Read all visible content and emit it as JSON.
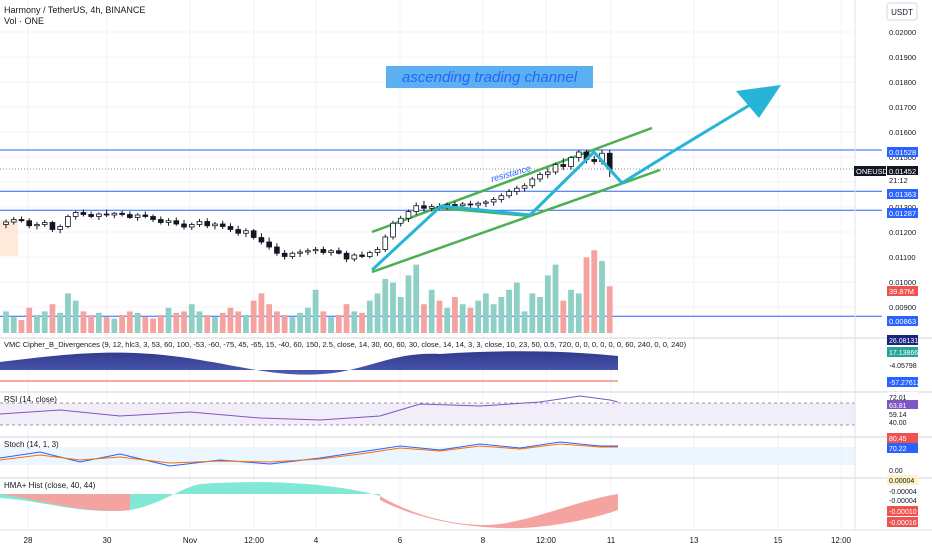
{
  "header": {
    "title": "Harmony / TetherUS, 4h, BINANCE",
    "subtitle": "Vol · ONE",
    "currency_button": "USDT"
  },
  "annotations": {
    "channel_label": "ascending trading channel",
    "resistance_label": "resistance"
  },
  "indicators": {
    "vmc": {
      "label": "VMC Cipher_B_Divergences (9, 12, hlc3, 3, 53, 60, 100, -53, -60, -75, 45, -65, 15, -40, 60, 150, 2.5, close, 14, 30, 60, 60, 30, close, 14, 14, 3, 3, close, 10, 23, 50, 0.5, 720, 0, 0, 0, 0, 0, 0, 60, 240, 0, 0, 240)",
      "values": [
        "26.08131",
        "17.13866",
        "-4.05798",
        "-57.27612"
      ]
    },
    "rsi": {
      "label": "RSI (14, close)",
      "values": [
        "72.01",
        "63.81",
        "59.14",
        "40.00"
      ]
    },
    "stoch": {
      "label": "Stoch (14, 1, 3)",
      "values": [
        "80.45",
        "70.22",
        "0.00"
      ]
    },
    "hma": {
      "label": "HMA+ Hist (close, 40, 44)",
      "values": [
        "0.00004",
        "-0.00004",
        "-0.00004",
        "-0.00010",
        "-0.00016"
      ]
    }
  },
  "price_axis": {
    "ticks": [
      "0.02000",
      "0.01900",
      "0.01800",
      "0.01700",
      "0.01600",
      "0.01500",
      "0.01400",
      "0.01300",
      "0.01200",
      "0.01100",
      "0.01000",
      "0.00900"
    ],
    "tags": [
      {
        "text": "0.01528",
        "color": "#2962ff"
      },
      {
        "text": "ONEUSDT",
        "color": "#131722"
      },
      {
        "text": "0.01452",
        "color": "#131722"
      },
      {
        "text": "21:12",
        "color": "#131722"
      },
      {
        "text": "0.01363",
        "color": "#2962ff"
      },
      {
        "text": "0.01287",
        "color": "#2962ff"
      },
      {
        "text": "39.87M",
        "color": "#ef5350"
      },
      {
        "text": "0.00863",
        "color": "#2962ff"
      }
    ]
  },
  "time_axis": [
    "28",
    "30",
    "Nov",
    "12:00",
    "4",
    "6",
    "8",
    "12:00",
    "11",
    "13",
    "15",
    "12:00"
  ],
  "colors": {
    "up": "#26a69a",
    "down": "#ef5350",
    "channel": "#4caf50",
    "hline": "#2962ff",
    "arrow": "#26b5d6",
    "label_bg": "#5ab0f0",
    "label_text": "#2962ff"
  },
  "chart_data": {
    "type": "candlestick",
    "title": "Harmony / TetherUS, 4h, BINANCE",
    "xlabel": "",
    "ylabel": "",
    "ylim": [
      0.0083,
      0.0208
    ],
    "horizontal_levels": [
      0.01528,
      0.01363,
      0.01287,
      0.00863
    ],
    "last_price": 0.01452,
    "candles": [
      [
        0.0123,
        0.0125,
        0.01215,
        0.0124
      ],
      [
        0.0124,
        0.0126,
        0.0123,
        0.0125
      ],
      [
        0.0125,
        0.01262,
        0.01238,
        0.01245
      ],
      [
        0.01245,
        0.01255,
        0.01215,
        0.01225
      ],
      [
        0.01225,
        0.0124,
        0.0121,
        0.0123
      ],
      [
        0.0123,
        0.01248,
        0.0122,
        0.01238
      ],
      [
        0.01238,
        0.01245,
        0.012,
        0.0121
      ],
      [
        0.0121,
        0.0123,
        0.01195,
        0.01222
      ],
      [
        0.01222,
        0.0127,
        0.01215,
        0.01262
      ],
      [
        0.01262,
        0.01285,
        0.0125,
        0.01278
      ],
      [
        0.01278,
        0.0129,
        0.01262,
        0.0127
      ],
      [
        0.0127,
        0.01282,
        0.01255,
        0.01262
      ],
      [
        0.01262,
        0.01278,
        0.01248,
        0.01272
      ],
      [
        0.01272,
        0.0129,
        0.0126,
        0.01268
      ],
      [
        0.01268,
        0.0128,
        0.01255,
        0.01275
      ],
      [
        0.01275,
        0.01285,
        0.01262,
        0.0127
      ],
      [
        0.0127,
        0.01282,
        0.01252,
        0.01258
      ],
      [
        0.01258,
        0.01275,
        0.01245,
        0.01268
      ],
      [
        0.01268,
        0.01282,
        0.01255,
        0.01262
      ],
      [
        0.01262,
        0.0127,
        0.0124,
        0.0125
      ],
      [
        0.0125,
        0.01262,
        0.0123,
        0.01238
      ],
      [
        0.01238,
        0.01255,
        0.01225,
        0.01245
      ],
      [
        0.01245,
        0.01258,
        0.01225,
        0.01232
      ],
      [
        0.01232,
        0.01248,
        0.0121,
        0.0122
      ],
      [
        0.0122,
        0.01238,
        0.01208,
        0.0123
      ],
      [
        0.0123,
        0.01252,
        0.0122,
        0.01242
      ],
      [
        0.01242,
        0.01255,
        0.01215,
        0.01225
      ],
      [
        0.01225,
        0.0124,
        0.0121,
        0.01232
      ],
      [
        0.01232,
        0.01245,
        0.01212,
        0.01222
      ],
      [
        0.01222,
        0.01235,
        0.012,
        0.0121
      ],
      [
        0.0121,
        0.01225,
        0.01185,
        0.01195
      ],
      [
        0.01195,
        0.01215,
        0.0118,
        0.01205
      ],
      [
        0.01205,
        0.01212,
        0.0117,
        0.01178
      ],
      [
        0.01178,
        0.01195,
        0.0115,
        0.0116
      ],
      [
        0.0116,
        0.01178,
        0.0113,
        0.0114
      ],
      [
        0.0114,
        0.01155,
        0.01105,
        0.01115
      ],
      [
        0.01115,
        0.01128,
        0.0109,
        0.01102
      ],
      [
        0.01102,
        0.01122,
        0.01092,
        0.01115
      ],
      [
        0.01115,
        0.0113,
        0.011,
        0.0112
      ],
      [
        0.0112,
        0.01135,
        0.01108,
        0.01125
      ],
      [
        0.01125,
        0.0114,
        0.01112,
        0.0113
      ],
      [
        0.0113,
        0.01142,
        0.0111,
        0.01118
      ],
      [
        0.01118,
        0.01132,
        0.01105,
        0.01125
      ],
      [
        0.01125,
        0.01138,
        0.0111,
        0.01115
      ],
      [
        0.01115,
        0.01125,
        0.0108,
        0.01092
      ],
      [
        0.01092,
        0.01115,
        0.01082,
        0.01108
      ],
      [
        0.01108,
        0.01122,
        0.01095,
        0.01102
      ],
      [
        0.01102,
        0.01125,
        0.01095,
        0.01118
      ],
      [
        0.01118,
        0.0114,
        0.01105,
        0.0113
      ],
      [
        0.0113,
        0.0119,
        0.0112,
        0.0118
      ],
      [
        0.0118,
        0.01245,
        0.0117,
        0.01235
      ],
      [
        0.01235,
        0.01265,
        0.01222,
        0.01255
      ],
      [
        0.01255,
        0.0129,
        0.0124,
        0.01282
      ],
      [
        0.01282,
        0.01318,
        0.01268,
        0.01305
      ],
      [
        0.01305,
        0.01325,
        0.01282,
        0.01295
      ],
      [
        0.01295,
        0.01312,
        0.01282,
        0.01302
      ],
      [
        0.01302,
        0.01315,
        0.01288,
        0.013
      ],
      [
        0.013,
        0.01318,
        0.0129,
        0.0131
      ],
      [
        0.0131,
        0.01322,
        0.01295,
        0.01305
      ],
      [
        0.01305,
        0.0132,
        0.01292,
        0.01312
      ],
      [
        0.01312,
        0.01325,
        0.01295,
        0.01308
      ],
      [
        0.01308,
        0.01322,
        0.01292,
        0.01315
      ],
      [
        0.01315,
        0.01328,
        0.013,
        0.0132
      ],
      [
        0.0132,
        0.0134,
        0.01305,
        0.0133
      ],
      [
        0.0133,
        0.01355,
        0.01318,
        0.01345
      ],
      [
        0.01345,
        0.01372,
        0.01335,
        0.01362
      ],
      [
        0.01362,
        0.01385,
        0.01348,
        0.01375
      ],
      [
        0.01375,
        0.01395,
        0.01362,
        0.01385
      ],
      [
        0.01385,
        0.0142,
        0.01375,
        0.01412
      ],
      [
        0.01412,
        0.0144,
        0.014,
        0.0143
      ],
      [
        0.0143,
        0.01455,
        0.01415,
        0.0144
      ],
      [
        0.0144,
        0.01478,
        0.0143,
        0.0147
      ],
      [
        0.0147,
        0.01495,
        0.01448,
        0.01462
      ],
      [
        0.01462,
        0.01505,
        0.0145,
        0.01498
      ],
      [
        0.01498,
        0.01528,
        0.01482,
        0.0152
      ],
      [
        0.0152,
        0.01528,
        0.01475,
        0.0149
      ],
      [
        0.0149,
        0.01505,
        0.0147,
        0.01482
      ],
      [
        0.01482,
        0.0153,
        0.0147,
        0.01515
      ],
      [
        0.01515,
        0.01528,
        0.0142,
        0.01452
      ]
    ],
    "volume": [
      30,
      22,
      18,
      35,
      25,
      30,
      40,
      28,
      55,
      45,
      30,
      25,
      28,
      22,
      20,
      25,
      30,
      28,
      22,
      20,
      25,
      35,
      28,
      30,
      40,
      30,
      25,
      22,
      28,
      35,
      30,
      25,
      45,
      55,
      40,
      30,
      25,
      22,
      28,
      35,
      60,
      30,
      22,
      25,
      40,
      30,
      28,
      45,
      55,
      75,
      70,
      50,
      80,
      95,
      40,
      60,
      45,
      35,
      50,
      40,
      35,
      45,
      55,
      40,
      50,
      60,
      70,
      30,
      55,
      50,
      80,
      95,
      45,
      60,
      55,
      105,
      115,
      100,
      65
    ]
  }
}
